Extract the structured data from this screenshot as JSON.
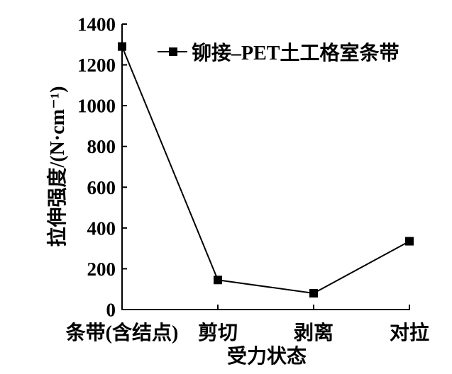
{
  "chart_data": {
    "type": "line",
    "categories": [
      "条带(含结点)",
      "剪切",
      "剥离",
      "对拉"
    ],
    "series": [
      {
        "name": "铆接–PET土工格室条带",
        "values": [
          1290,
          145,
          80,
          335
        ],
        "color": "#000000"
      }
    ],
    "xlabel": "受力状态",
    "ylabel": "拉伸强度/(N·cm⁻¹)",
    "ylim": [
      0,
      1400
    ],
    "yticks": [
      0,
      200,
      400,
      600,
      800,
      1000,
      1200,
      1400
    ],
    "grid": false,
    "legend_position": "top-right"
  }
}
